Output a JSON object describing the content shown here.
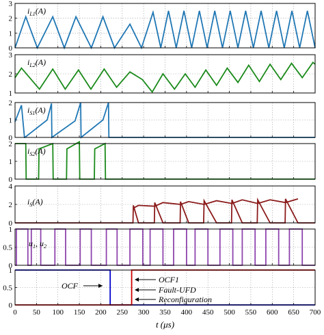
{
  "chart_data": {
    "type": "line",
    "xlabel": "t (μs)",
    "x_ticks": [
      0,
      50,
      100,
      150,
      200,
      250,
      300,
      350,
      400,
      450,
      500,
      550,
      600,
      650,
      700
    ],
    "xlim": [
      0,
      700
    ],
    "grid": true,
    "panels": [
      {
        "label_main": "i",
        "label_sub": "L1",
        "label_tail": "(A)",
        "ylim": [
          0,
          3
        ],
        "y_ticks": [
          0,
          1,
          2,
          3
        ],
        "series": [
          {
            "color": "#1f77b4",
            "x": [
              0,
              25,
              52,
              88,
              115,
              142,
              178,
              205,
              232,
              268,
              295,
              322,
              340,
              358,
              376,
              394,
              412,
              430,
              448,
              466,
              484,
              502,
              520,
              538,
              556,
              574,
              592,
              610,
              628,
              646,
              664,
              682,
              700
            ],
            "y": [
              0.0,
              2.1,
              0.0,
              2.1,
              0.0,
              2.1,
              0.0,
              2.1,
              0.0,
              1.6,
              0.0,
              2.4,
              0.0,
              2.5,
              0.0,
              2.5,
              0.0,
              2.5,
              0.0,
              2.5,
              0.0,
              2.5,
              0.0,
              2.5,
              0.0,
              2.5,
              0.0,
              2.5,
              0.0,
              2.5,
              0.0,
              2.5,
              0.0
            ]
          }
        ]
      },
      {
        "label_main": "i",
        "label_sub": "L2",
        "label_tail": "(A)",
        "ylim": [
          1,
          3
        ],
        "y_ticks": [
          1,
          2,
          3
        ],
        "series": [
          {
            "color": "#1a8a1a",
            "x": [
              0,
              15,
              57,
              88,
              117,
              148,
              177,
              208,
              237,
              268,
              297,
              320,
              345,
              372,
              397,
              420,
              445,
              470,
              495,
              520,
              545,
              570,
              595,
              620,
              645,
              670,
              695,
              700
            ],
            "y": [
              1.8,
              2.3,
              1.2,
              2.25,
              1.2,
              2.2,
              1.2,
              2.25,
              1.3,
              2.1,
              1.7,
              1.05,
              2.0,
              1.2,
              2.0,
              1.3,
              2.2,
              1.4,
              2.3,
              1.55,
              2.45,
              1.6,
              2.5,
              1.7,
              2.55,
              1.8,
              2.6,
              2.5
            ]
          }
        ]
      },
      {
        "label_main": "i",
        "label_sub": "S1",
        "label_tail": "(A)",
        "ylim": [
          0,
          2
        ],
        "y_ticks": [
          0,
          1,
          2
        ],
        "series": [
          {
            "color": "#1f77b4",
            "x": [
              0,
              15,
              22,
              23,
              75,
              85,
              86,
              140,
              153,
              154,
              205,
              218,
              219,
              700
            ],
            "y": [
              0.9,
              1.85,
              0.0,
              0.0,
              1.0,
              1.95,
              0.0,
              0.95,
              2.0,
              0.0,
              1.0,
              2.0,
              0.0,
              0.0
            ]
          }
        ]
      },
      {
        "label_main": "i",
        "label_sub": "S2",
        "label_tail": "(A)",
        "ylim": [
          0,
          2
        ],
        "y_ticks": [
          0,
          1,
          2
        ],
        "series": [
          {
            "color": "#1a8a1a",
            "x": [
              0,
              25,
              26,
              55,
              56,
              88,
              89,
              120,
              121,
              150,
              151,
              185,
              186,
              210,
              211,
              265,
              266,
              700
            ],
            "y": [
              2.0,
              2.0,
              0.0,
              0.0,
              1.7,
              2.0,
              0.0,
              0.0,
              1.7,
              2.1,
              0.0,
              0.0,
              1.7,
              2.0,
              0.0,
              0.0,
              0.0,
              0.0
            ]
          }
        ]
      },
      {
        "label_main": "i",
        "label_sub": "S",
        "label_tail": "(A)",
        "ylim": [
          0,
          4
        ],
        "y_ticks": [
          0,
          2,
          4
        ],
        "series": [
          {
            "color": "#8b1a1a",
            "x": [
              0,
              275,
              276,
              288,
              289,
              325,
              326,
              345,
              346,
              385,
              386,
              405,
              406,
              440,
              441,
              470,
              471,
              505,
              506,
              530,
              531,
              565,
              566,
              595,
              596,
              630,
              631,
              660,
              661,
              700
            ],
            "y": [
              0.0,
              0.0,
              1.9,
              0.0,
              0.0,
              0.0,
              2.2,
              0.0,
              0.0,
              0.0,
              2.3,
              0.0,
              0.0,
              0.0,
              2.4,
              0.0,
              0.0,
              0.0,
              2.5,
              0.0,
              0.0,
              0.0,
              2.5,
              0.0,
              0.0,
              0.0,
              2.6,
              0.0,
              0.0,
              0.0
            ]
          },
          {
            "color": "#8b1a1a",
            "x": [
              276,
              288,
              326,
              345,
              386,
              405,
              441,
              470,
              506,
              530,
              566,
              595,
              631,
              660
            ],
            "y": [
              1.6,
              1.9,
              1.8,
              2.2,
              2.0,
              2.3,
              2.0,
              2.4,
              2.1,
              2.5,
              2.1,
              2.5,
              2.2,
              2.6
            ]
          }
        ]
      },
      {
        "label_main": "u",
        "label_sub": "1",
        "label_tail": ", u",
        "label_sub2": "2",
        "ylim": [
          0,
          1
        ],
        "y_ticks": [
          0,
          0.5,
          1
        ],
        "series": [
          {
            "color": "#8e44ad",
            "pulses": [
              [
                3,
                30
              ],
              [
                38,
                60
              ],
              [
                93,
                118
              ],
              [
                152,
                178
              ],
              [
                213,
                238
              ],
              [
                268,
                298
              ],
              [
                315,
                345
              ],
              [
                370,
                400
              ],
              [
                420,
                450
              ],
              [
                478,
                508
              ],
              [
                530,
                560
              ],
              [
                585,
                615
              ],
              [
                640,
                670
              ]
            ]
          }
        ]
      },
      {
        "label_main": "",
        "ylim": [
          0,
          1
        ],
        "y_ticks": [
          0,
          0.5,
          1
        ],
        "series": [
          {
            "color": "#0000cc",
            "x": [
              0,
              222,
              222,
              700
            ],
            "y": [
              1.0,
              1.0,
              0.0,
              0.0
            ]
          },
          {
            "color": "#cc0000",
            "x": [
              0,
              272,
              272,
              700
            ],
            "y": [
              0.0,
              0.0,
              1.0,
              1.0
            ]
          }
        ],
        "annotations": [
          {
            "text": "OCF",
            "arrow": "right"
          },
          {
            "text": "OCF1",
            "arrow": "left"
          },
          {
            "text": "Fault-UFD",
            "arrow": "left"
          },
          {
            "text": "Reconfiguration",
            "arrow": "left"
          }
        ]
      }
    ]
  }
}
